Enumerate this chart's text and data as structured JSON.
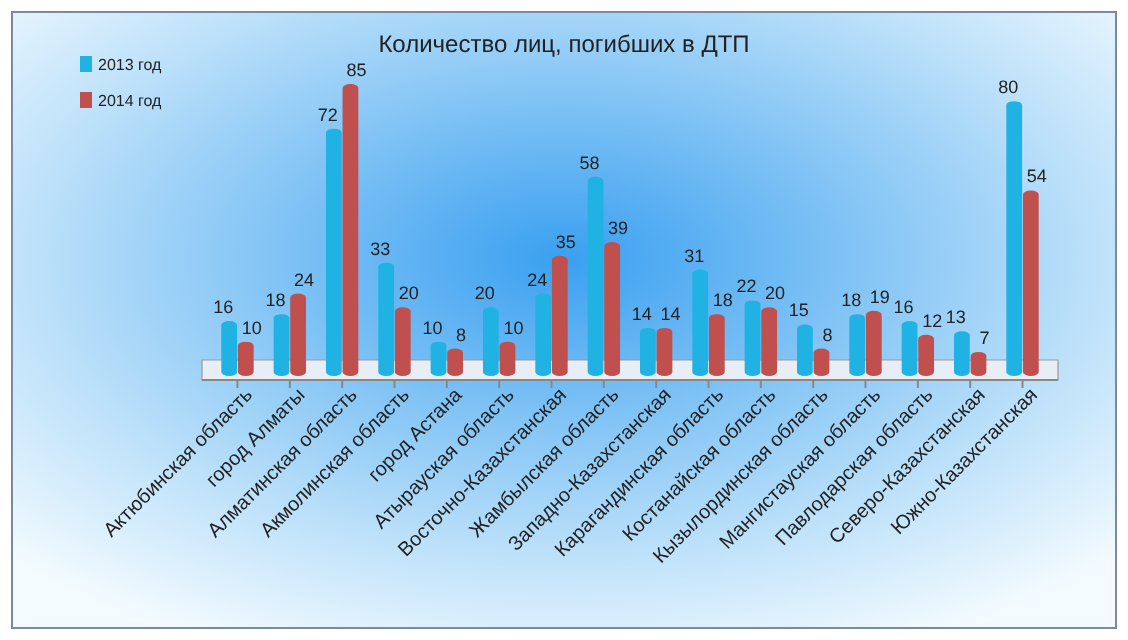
{
  "chart_data": {
    "type": "bar",
    "title": "Количество лиц, погибших в ДТП",
    "categories": [
      "Актюбинская область",
      "город Алматы",
      "Алматинская область",
      "Акмолинская область",
      "город Астана",
      "Атырауская область",
      "Восточно-Казахстанская",
      "Жамбылская область",
      "Западно-Казахстанская",
      "Карагандинская область",
      "Костанайская область",
      "Кызылординская область",
      "Мангистауская область",
      "Павлодарская область",
      "Северо-Казахстанская",
      "Южно-Казахстанская"
    ],
    "series": [
      {
        "name": "2013 год",
        "color": "#1fb2e3",
        "values": [
          16,
          18,
          72,
          33,
          10,
          20,
          24,
          58,
          14,
          31,
          22,
          15,
          18,
          16,
          13,
          80
        ]
      },
      {
        "name": "2014 год",
        "color": "#c0504d",
        "values": [
          10,
          24,
          85,
          20,
          8,
          10,
          35,
          39,
          14,
          18,
          20,
          8,
          19,
          12,
          7,
          54
        ]
      }
    ],
    "data_labels": true,
    "legend": "top left"
  }
}
